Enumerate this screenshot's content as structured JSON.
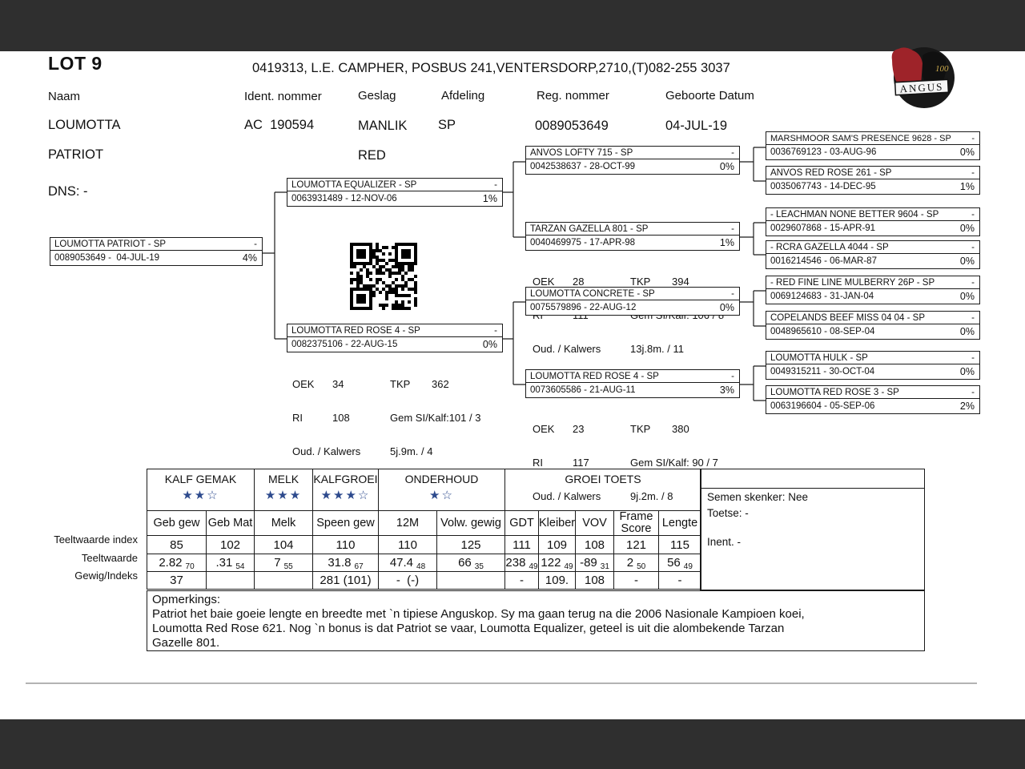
{
  "page": {
    "lot": "LOT 9",
    "breeder_line": "0419313, L.E. CAMPHER, POSBUS 241,VENTERSDORP,2710,(T)082-255 3037"
  },
  "logo": {
    "banner": "ANGUS",
    "years": "100"
  },
  "fields": {
    "naam_label": "Naam",
    "naam_value1": "LOUMOTTA",
    "naam_value2": "PATRIOT",
    "ident_label": "Ident. nommer",
    "ident_value": "AC  190594",
    "geslag_label": "Geslag",
    "geslag_value": "MANLIK",
    "geslag_value2": "RED",
    "afdeling_label": "Afdeling",
    "afdeling_value": "SP",
    "reg_label": "Reg. nommer",
    "reg_value": "0089053649",
    "geboorte_label": "Geboorte Datum",
    "geboorte_value": "04-JUL-19",
    "dns": "DNS: -"
  },
  "pedigree": {
    "dash": "-",
    "subject": {
      "name": "LOUMOTTA PATRIOT - SP",
      "id": "0089053649 -  04-JUL-19",
      "pct": "4%"
    },
    "sire": {
      "name": "LOUMOTTA EQUALIZER - SP",
      "id": "0063931489 - 12-NOV-06",
      "pct": "1%"
    },
    "dam": {
      "name": "LOUMOTTA RED ROSE 4 - SP",
      "id": "0082375106 - 22-AUG-15",
      "pct": "0%"
    },
    "gen3": [
      {
        "name": "ANVOS LOFTY 715 - SP",
        "id": "0042538637 - 28-OCT-99",
        "pct": "0%"
      },
      {
        "name": "TARZAN GAZELLA 801 - SP",
        "id": "0040469975 - 17-APR-98",
        "pct": "1%"
      },
      {
        "name": "LOUMOTTA CONCRETE - SP",
        "id": "0075579896 - 22-AUG-12",
        "pct": "0%"
      },
      {
        "name": "LOUMOTTA RED ROSE 4 - SP",
        "id": "0073605586 - 21-AUG-11",
        "pct": "3%"
      }
    ],
    "gen4": [
      {
        "name": "MARSHMOOR SAM'S PRESENCE 9628 - SP",
        "id": "0036769123 - 03-AUG-96",
        "pct": "0%"
      },
      {
        "name": "ANVOS RED ROSE 261 - SP",
        "id": "0035067743 - 14-DEC-95",
        "pct": "1%"
      },
      {
        "name": "- LEACHMAN NONE BETTER 9604 - SP",
        "id": "0029607868 - 15-APR-91",
        "pct": "0%"
      },
      {
        "name": "- RCRA GAZELLA 4044 - SP",
        "id": "0016214546 - 06-MAR-87",
        "pct": "0%"
      },
      {
        "name": "- RED FINE LINE MULBERRY 26P - SP",
        "id": "0069124683 - 31-JAN-04",
        "pct": "0%"
      },
      {
        "name": "COPELANDS BEEF MISS 04 04 - SP",
        "id": "0048965610 - 08-SEP-04",
        "pct": "0%"
      },
      {
        "name": "LOUMOTTA HULK - SP",
        "id": "0049315211 - 30-OCT-04",
        "pct": "0%"
      },
      {
        "name": "LOUMOTTA RED ROSE 3 - SP",
        "id": "0063196604 - 05-SEP-06",
        "pct": "2%"
      }
    ],
    "stats_labels": {
      "oek": "OEK",
      "tkp": "TKP",
      "ri": "RI",
      "gem": "Gem SI/Kalf:",
      "oud": "Oud. / Kalwers"
    },
    "dam_stats": {
      "oek": "34",
      "tkp": "362",
      "ri": "108",
      "gem": "101 / 3",
      "oud": "5j.9m. / 4"
    },
    "tarzan_stats": {
      "oek": "28",
      "tkp": "394",
      "ri": "111",
      "gem": " 106 / 8",
      "oud": "13j.8m. / 11"
    },
    "redrose_stats": {
      "oek": "23",
      "tkp": "380",
      "ri": "117",
      "gem": " 90 / 7",
      "oud": "9j.2m. / 8"
    }
  },
  "table": {
    "groups": [
      {
        "label": "KALF GEMAK",
        "stars": "★★☆"
      },
      {
        "label": "MELK",
        "stars": "★★★"
      },
      {
        "label": "KALFGROEI",
        "stars": "★★★☆"
      },
      {
        "label": "ONDERHOUD",
        "stars": "★☆"
      },
      {
        "label": "GROEI TOETS",
        "stars": ""
      }
    ],
    "columns": [
      "Geb gew",
      "Geb Mat",
      "Melk",
      "Speen gew",
      "12M",
      "Volw. gewig",
      "GDT",
      "Kleiber",
      "VOV",
      "Frame Score",
      "Lengte"
    ],
    "row_labels": [
      "Teeltwaarde index",
      "Teeltwaarde",
      "Gewig/Indeks"
    ],
    "index_row": [
      "85",
      "102",
      "104",
      "110",
      "110",
      "125",
      "111",
      "109",
      "108",
      "121",
      "115"
    ],
    "ebv_row": [
      {
        "v": "2.82",
        "acc": "70"
      },
      {
        "v": ".31",
        "acc": "54"
      },
      {
        "v": "7",
        "acc": "55"
      },
      {
        "v": "31.8",
        "acc": "67"
      },
      {
        "v": "47.4",
        "acc": "48"
      },
      {
        "v": "66",
        "acc": "35"
      },
      {
        "v": "238",
        "acc": "49"
      },
      {
        "v": "122",
        "acc": "49"
      },
      {
        "v": "-89",
        "acc": "31"
      },
      {
        "v": "2",
        "acc": "50"
      },
      {
        "v": "56",
        "acc": "49"
      }
    ],
    "weight_row": [
      "37",
      "",
      "",
      "281 (101)",
      "-  (-)",
      "",
      "-",
      "109.",
      "108",
      "-",
      "-"
    ]
  },
  "info_panel": {
    "semen": "Semen skenker: Nee",
    "toetse": "Toetse: -",
    "inent": "Inent. -"
  },
  "remarks": {
    "title": "Opmerkings:",
    "line1": "Patriot het baie goeie lengte en breedte met `n tipiese Anguskop. Sy ma gaan terug na die 2006 Nasionale Kampioen koei,",
    "line2": "Loumotta Red Rose 621. Nog `n bonus is dat Patriot se vaar, Loumotta Equalizer, geteel is uit die alombekende Tarzan",
    "line3": "Gazelle 801."
  },
  "colors": {
    "accent_star": "#2d4a8d",
    "bar": "#2f2f2f",
    "logo_red": "#9e2329"
  }
}
